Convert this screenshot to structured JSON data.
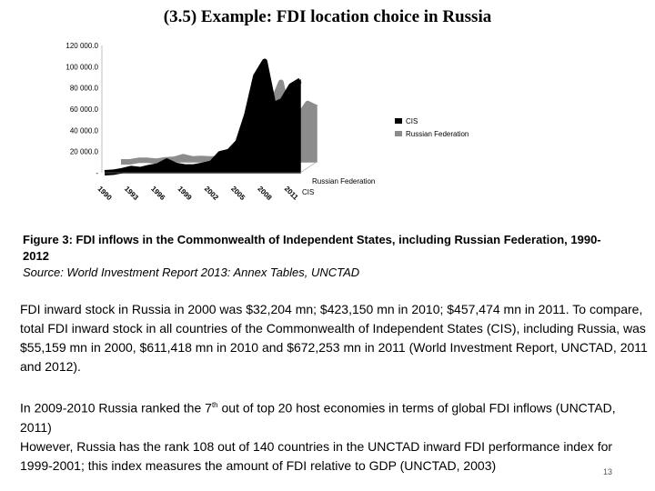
{
  "slide": {
    "title": "(3.5) Example: FDI location choice in Russia",
    "page_number": "13"
  },
  "figure": {
    "caption": "Figure 3: FDI inflows in the Commonwealth of Independent States, including Russian Federation, 1990-2012",
    "source": "Source: World Investment Report 2013: Annex Tables, UNCTAD"
  },
  "body": {
    "para1": "FDI inward stock in Russia in 2000 was $32,204 mn; $423,150 mn in 2010; $457,474 mn in 2011. To compare, total FDI inward stock in all countries of the Commonwealth of Independent States (CIS), including Russia, was $55,159 mn in 2000, $611,418 mn in 2010 and $672,253 mn in 2011 (World Investment Report, UNCTAD, 2011 and 2012).",
    "para2_a": "In 2009-2010 Russia ranked the 7",
    "para2_sup": "th",
    "para2_b": " out of top 20 host economies in terms of global FDI inflows (UNCTAD, 2011)",
    "para3": "However, Russia has the rank 108 out of 140 countries in the UNCTAD inward FDI performance index for 1999-2001; this index measures the amount of FDI relative to GDP (UNCTAD, 2003)"
  },
  "chart_data": {
    "type": "area",
    "title": "",
    "xlabel": "",
    "ylabel": "",
    "x": [
      1990,
      1991,
      1992,
      1993,
      1994,
      1995,
      1996,
      1997,
      1998,
      1999,
      2000,
      2001,
      2002,
      2003,
      2004,
      2005,
      2006,
      2007,
      2008,
      2009,
      2010,
      2011,
      2012
    ],
    "x_tick_labels": [
      "1990",
      "1993",
      "1996",
      "1999",
      "2002",
      "2005",
      "2008",
      "2011"
    ],
    "y_tick_labels": [
      "-",
      "20 000.0",
      "40 000.0",
      "60 000.0",
      "80 000.0",
      "100 000.0",
      "120 000.0"
    ],
    "ylim": [
      0,
      120000
    ],
    "depth_labels": [
      "Russian Federation",
      "CIS"
    ],
    "series": [
      {
        "name": "CIS",
        "color": "#000000",
        "values": [
          0,
          500,
          2000,
          4000,
          3000,
          5000,
          6500,
          11000,
          7000,
          5500,
          5500,
          7000,
          9000,
          18000,
          20000,
          29000,
          55000,
          91000,
          105000,
          64000,
          68000,
          82000,
          87000
        ]
      },
      {
        "name": "Russian Federation",
        "color": "#8c8c8c",
        "values": [
          0,
          0,
          1500,
          1500,
          700,
          2000,
          2500,
          4900,
          2800,
          3300,
          2700,
          2700,
          3500,
          8000,
          15000,
          13000,
          30000,
          55000,
          75000,
          36000,
          43000,
          55000,
          51000
        ]
      }
    ],
    "legend_position": "right",
    "grid": false
  }
}
